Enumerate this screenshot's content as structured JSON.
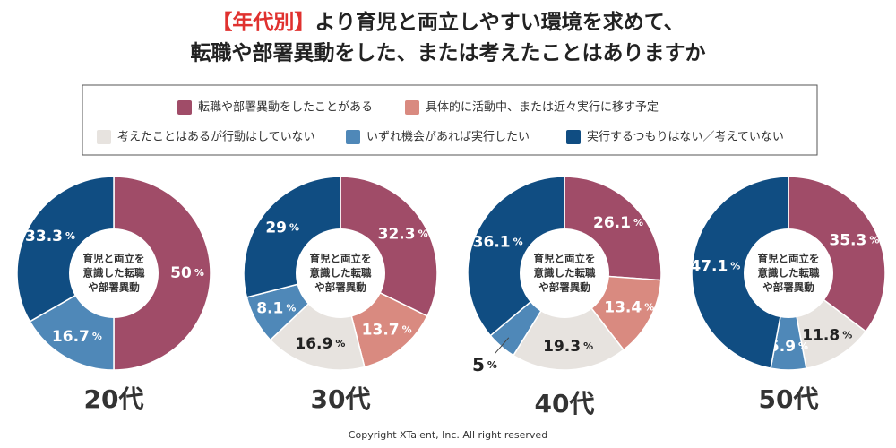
{
  "header": {
    "tag": "【年代別】",
    "line1": "より育児と両立しやすい環境を求めて、",
    "line2": "転職や部署異動をした、または考えたことはありますか"
  },
  "legend": [
    {
      "name": "転職や部署異動をしたことがある",
      "color": "#a04c68"
    },
    {
      "name": "具体的に活動中、または近々実行に移す予定",
      "color": "#d98a80"
    },
    {
      "name": "考えたことはあるが行動はしていない",
      "color": "#e7e3df"
    },
    {
      "name": "いずれ機会があれば実行したい",
      "color": "#4f88b8"
    },
    {
      "name": "実行するつもりはない／考えていない",
      "color": "#104d82"
    }
  ],
  "unit": "%",
  "chart_data": [
    {
      "type": "donut",
      "title": "20代",
      "center_text": [
        "育児と両立を",
        "意識した転職",
        "や部署異動"
      ],
      "values": [
        50,
        null,
        null,
        16.7,
        33.3
      ]
    },
    {
      "type": "donut",
      "title": "30代",
      "center_text": [
        "育児と両立を",
        "意識した転職",
        "や部署異動"
      ],
      "values": [
        32.3,
        13.7,
        16.9,
        8.1,
        29
      ]
    },
    {
      "type": "donut",
      "title": "40代",
      "center_text": [
        "育児と両立を",
        "意識した転職",
        "や部署異動"
      ],
      "values": [
        26.1,
        13.4,
        19.3,
        5,
        36.1
      ]
    },
    {
      "type": "donut",
      "title": "50代",
      "center_text": [
        "育児と両立を",
        "意識した転職",
        "や部署異動"
      ],
      "values": [
        35.3,
        null,
        11.8,
        5.9,
        47.1
      ]
    }
  ],
  "copyright": "Copyright XTalent, Inc. All right reserved"
}
